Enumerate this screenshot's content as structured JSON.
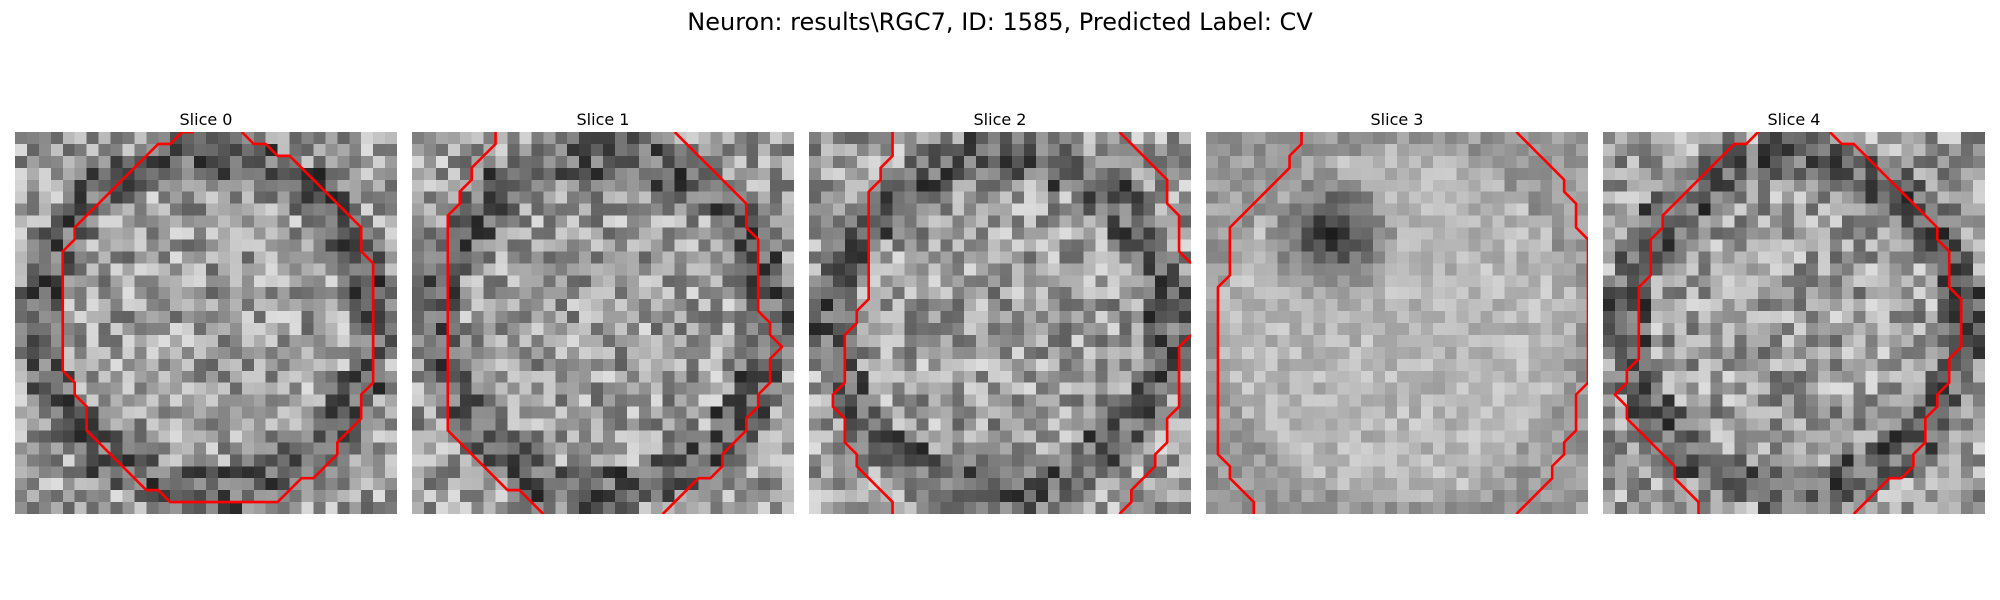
{
  "figure": {
    "title": "Neuron: results\\RGC7, ID: 1585, Predicted Label: CV"
  },
  "colors": {
    "contour": "#ff0000",
    "background": "#ffffff"
  },
  "grid_size": 32,
  "panels": [
    {
      "title": "Slice 0",
      "seed": 11,
      "contours": [
        [
          [
            14.5,
            -0.5
          ],
          [
            13.5,
            -0.5
          ],
          [
            12.5,
            0.5
          ],
          [
            11.5,
            0.5
          ],
          [
            10.5,
            1.5
          ],
          [
            9.5,
            2.5
          ],
          [
            8.5,
            3.5
          ],
          [
            7.5,
            4.5
          ],
          [
            6.5,
            5.5
          ],
          [
            5.5,
            6.5
          ],
          [
            4.5,
            7.5
          ],
          [
            4.5,
            8.5
          ],
          [
            3.5,
            9.5
          ],
          [
            3.5,
            19.5
          ],
          [
            4.5,
            20.5
          ],
          [
            4.5,
            21.5
          ],
          [
            5.5,
            22.5
          ],
          [
            5.5,
            24.5
          ],
          [
            6.5,
            25.5
          ],
          [
            7.5,
            26.5
          ],
          [
            8.5,
            27.5
          ],
          [
            9.5,
            28.5
          ],
          [
            10.5,
            29.5
          ],
          [
            11.5,
            29.5
          ],
          [
            12.5,
            30.5
          ],
          [
            21.5,
            30.5
          ],
          [
            22.5,
            29.5
          ],
          [
            23.5,
            28.5
          ],
          [
            24.5,
            28.5
          ],
          [
            25.5,
            27.5
          ],
          [
            26.5,
            26.5
          ],
          [
            26.5,
            25.5
          ],
          [
            27.5,
            24.5
          ],
          [
            28.5,
            23.5
          ],
          [
            28.5,
            21.5
          ],
          [
            29.5,
            20.5
          ],
          [
            29.5,
            10.5
          ],
          [
            28.5,
            9.5
          ],
          [
            28.5,
            7.5
          ],
          [
            27.5,
            6.5
          ],
          [
            26.5,
            5.5
          ],
          [
            25.5,
            4.5
          ],
          [
            24.5,
            3.5
          ],
          [
            23.5,
            2.5
          ],
          [
            22.5,
            1.5
          ],
          [
            21.5,
            1.5
          ],
          [
            20.5,
            0.5
          ],
          [
            19.5,
            0.5
          ],
          [
            18.5,
            -0.5
          ]
        ]
      ]
    },
    {
      "title": "Slice 1",
      "seed": 23,
      "contours": [
        [
          [
            6.5,
            -0.5
          ],
          [
            6.5,
            0.5
          ],
          [
            5.5,
            1.5
          ],
          [
            4.5,
            2.5
          ],
          [
            4.5,
            3.5
          ],
          [
            3.5,
            4.5
          ],
          [
            3.5,
            5.5
          ],
          [
            2.5,
            6.5
          ],
          [
            2.5,
            21.5
          ],
          [
            2.5,
            24.5
          ],
          [
            3.5,
            25.5
          ],
          [
            4.5,
            26.5
          ],
          [
            5.5,
            27.5
          ],
          [
            6.5,
            28.5
          ],
          [
            7.5,
            29.5
          ],
          [
            8.5,
            29.5
          ],
          [
            9.5,
            30.5
          ],
          [
            10.5,
            31.5
          ]
        ],
        [
          [
            21.5,
            -0.5
          ],
          [
            22.5,
            0.5
          ],
          [
            23.5,
            1.5
          ],
          [
            24.5,
            2.5
          ],
          [
            25.5,
            3.5
          ],
          [
            26.5,
            4.5
          ],
          [
            27.5,
            5.5
          ],
          [
            27.5,
            7.5
          ],
          [
            28.5,
            8.5
          ],
          [
            28.5,
            14.5
          ],
          [
            29.5,
            15.5
          ],
          [
            29.5,
            16.5
          ],
          [
            30.5,
            17.5
          ],
          [
            29.5,
            18.5
          ],
          [
            29.5,
            20.5
          ],
          [
            28.5,
            21.5
          ],
          [
            28.5,
            22.5
          ],
          [
            27.5,
            23.5
          ],
          [
            27.5,
            24.5
          ],
          [
            26.5,
            25.5
          ],
          [
            25.5,
            26.5
          ],
          [
            25.5,
            27.5
          ],
          [
            24.5,
            28.5
          ],
          [
            23.5,
            28.5
          ],
          [
            22.5,
            29.5
          ],
          [
            21.5,
            30.5
          ],
          [
            20.5,
            31.5
          ]
        ]
      ]
    },
    {
      "title": "Slice 2",
      "seed": 37,
      "contours": [
        [
          [
            6.5,
            -0.5
          ],
          [
            6.5,
            1.5
          ],
          [
            5.5,
            2.5
          ],
          [
            5.5,
            3.5
          ],
          [
            4.5,
            4.5
          ],
          [
            4.5,
            13.5
          ],
          [
            3.5,
            14.5
          ],
          [
            3.5,
            15.5
          ],
          [
            2.5,
            16.5
          ],
          [
            2.5,
            20.5
          ],
          [
            1.5,
            21.5
          ],
          [
            1.5,
            22.5
          ],
          [
            2.5,
            23.5
          ],
          [
            2.5,
            25.5
          ],
          [
            3.5,
            26.5
          ],
          [
            3.5,
            27.5
          ],
          [
            4.5,
            28.5
          ],
          [
            5.5,
            29.5
          ],
          [
            6.5,
            30.5
          ],
          [
            6.5,
            31.5
          ]
        ],
        [
          [
            25.5,
            -0.5
          ],
          [
            26.5,
            0.5
          ],
          [
            27.5,
            1.5
          ],
          [
            28.5,
            2.5
          ],
          [
            29.5,
            3.5
          ],
          [
            29.5,
            5.5
          ],
          [
            30.5,
            6.5
          ],
          [
            30.5,
            9.5
          ],
          [
            31.5,
            10.5
          ]
        ],
        [
          [
            31.5,
            16.5
          ],
          [
            30.5,
            17.5
          ],
          [
            30.5,
            22.5
          ],
          [
            29.5,
            23.5
          ],
          [
            29.5,
            25.5
          ],
          [
            28.5,
            26.5
          ],
          [
            28.5,
            27.5
          ],
          [
            27.5,
            28.5
          ],
          [
            26.5,
            29.5
          ],
          [
            26.5,
            30.5
          ],
          [
            25.5,
            31.5
          ]
        ]
      ]
    },
    {
      "title": "Slice 3",
      "seed": 53,
      "blob": true,
      "contours": [
        [
          [
            7.5,
            -0.5
          ],
          [
            7.5,
            0.5
          ],
          [
            6.5,
            1.5
          ],
          [
            6.5,
            2.5
          ],
          [
            5.5,
            3.5
          ],
          [
            4.5,
            4.5
          ],
          [
            3.5,
            5.5
          ],
          [
            2.5,
            6.5
          ],
          [
            1.5,
            7.5
          ],
          [
            1.5,
            11.5
          ],
          [
            0.5,
            12.5
          ],
          [
            0.5,
            26.5
          ],
          [
            1.5,
            27.5
          ],
          [
            1.5,
            28.5
          ],
          [
            2.5,
            29.5
          ],
          [
            3.5,
            30.5
          ],
          [
            3.5,
            31.5
          ]
        ],
        [
          [
            25.5,
            -0.5
          ],
          [
            26.5,
            0.5
          ],
          [
            27.5,
            1.5
          ],
          [
            28.5,
            2.5
          ],
          [
            29.5,
            3.5
          ],
          [
            29.5,
            4.5
          ],
          [
            30.5,
            5.5
          ],
          [
            30.5,
            7.5
          ],
          [
            31.5,
            8.5
          ],
          [
            31.5,
            20.5
          ],
          [
            30.5,
            21.5
          ],
          [
            30.5,
            24.5
          ],
          [
            29.5,
            25.5
          ],
          [
            29.5,
            26.5
          ],
          [
            28.5,
            27.5
          ],
          [
            28.5,
            28.5
          ],
          [
            27.5,
            29.5
          ],
          [
            26.5,
            30.5
          ],
          [
            25.5,
            31.5
          ]
        ]
      ]
    },
    {
      "title": "Slice 4",
      "seed": 71,
      "contours": [
        [
          [
            12.5,
            -0.5
          ],
          [
            11.5,
            0.5
          ],
          [
            10.5,
            0.5
          ],
          [
            9.5,
            1.5
          ],
          [
            8.5,
            2.5
          ],
          [
            7.5,
            3.5
          ],
          [
            6.5,
            4.5
          ],
          [
            5.5,
            5.5
          ],
          [
            4.5,
            6.5
          ],
          [
            4.5,
            7.5
          ],
          [
            3.5,
            8.5
          ],
          [
            3.5,
            11.5
          ],
          [
            2.5,
            12.5
          ],
          [
            2.5,
            18.5
          ],
          [
            1.5,
            19.5
          ],
          [
            1.5,
            20.5
          ],
          [
            0.5,
            21.5
          ],
          [
            1.5,
            22.5
          ],
          [
            1.5,
            23.5
          ],
          [
            2.5,
            24.5
          ],
          [
            3.5,
            25.5
          ],
          [
            4.5,
            26.5
          ],
          [
            5.5,
            27.5
          ],
          [
            5.5,
            28.5
          ],
          [
            6.5,
            29.5
          ],
          [
            7.5,
            30.5
          ],
          [
            7.5,
            31.5
          ]
        ],
        [
          [
            18.5,
            -0.5
          ],
          [
            19.5,
            0.5
          ],
          [
            20.5,
            0.5
          ],
          [
            21.5,
            1.5
          ],
          [
            22.5,
            2.5
          ],
          [
            23.5,
            3.5
          ],
          [
            24.5,
            4.5
          ],
          [
            25.5,
            5.5
          ],
          [
            26.5,
            6.5
          ],
          [
            27.5,
            7.5
          ],
          [
            27.5,
            8.5
          ],
          [
            28.5,
            9.5
          ],
          [
            28.5,
            12.5
          ],
          [
            29.5,
            13.5
          ],
          [
            29.5,
            17.5
          ],
          [
            28.5,
            18.5
          ],
          [
            28.5,
            20.5
          ],
          [
            27.5,
            21.5
          ],
          [
            27.5,
            22.5
          ],
          [
            26.5,
            23.5
          ],
          [
            26.5,
            25.5
          ],
          [
            25.5,
            26.5
          ],
          [
            25.5,
            27.5
          ],
          [
            24.5,
            28.5
          ],
          [
            23.5,
            28.5
          ],
          [
            22.5,
            29.5
          ],
          [
            21.5,
            30.5
          ],
          [
            20.5,
            31.5
          ]
        ]
      ]
    }
  ]
}
